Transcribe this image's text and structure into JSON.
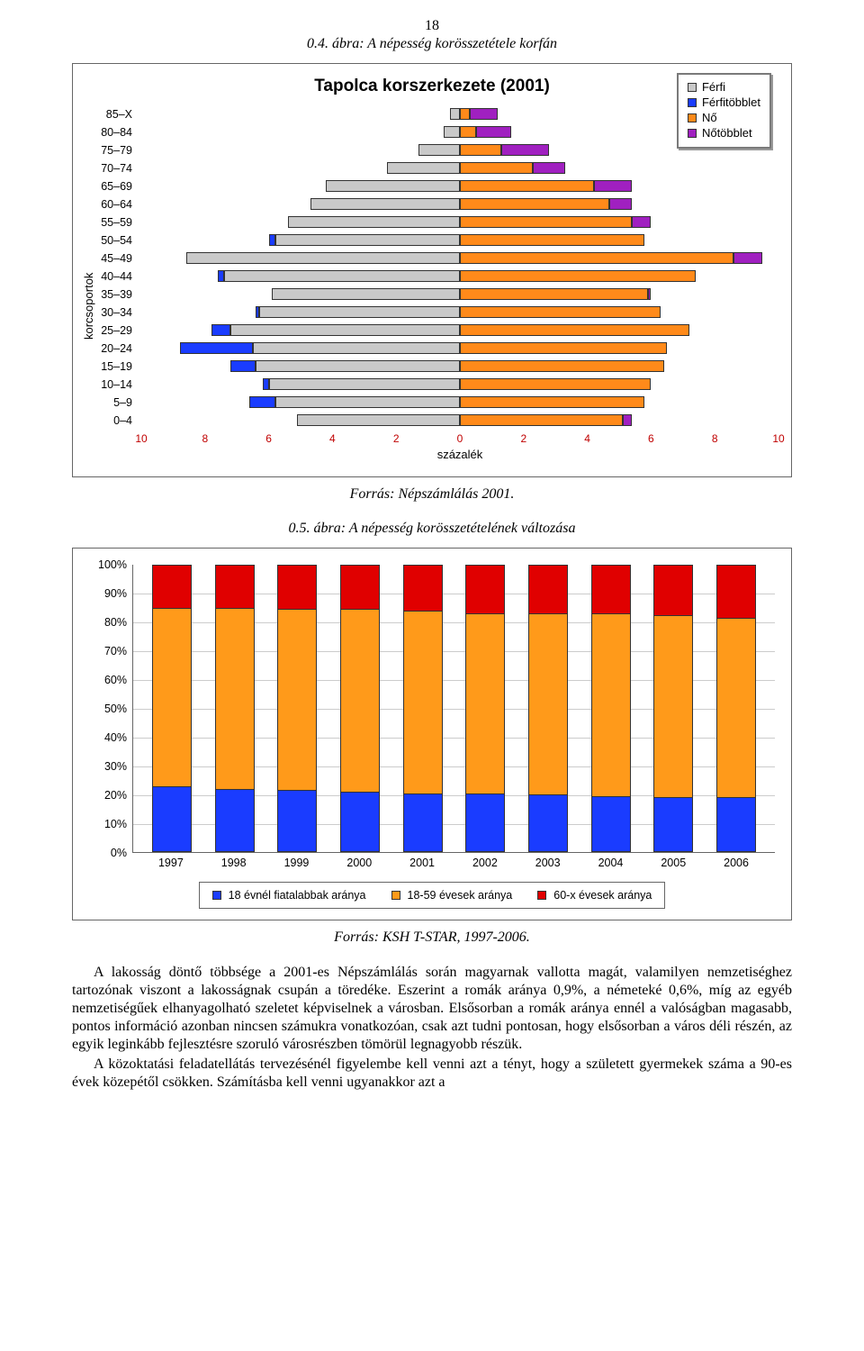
{
  "page_number": "18",
  "caption_pyramid": "0.4. ábra: A népesség korösszetétele korfán",
  "pyramid": {
    "title": "Tapolca korszerkezete (2001)",
    "ylabel": "korcsoportok",
    "xlabel": "százalék",
    "xlim": 10,
    "ticks": [
      10,
      8,
      6,
      4,
      2,
      0,
      2,
      4,
      6,
      8,
      10
    ],
    "tick_color": "#c00000",
    "legend": {
      "male": "Férfi",
      "male_surplus": "Férfitöbblet",
      "female": "Nő",
      "female_surplus": "Nőtöbblet"
    },
    "colors": {
      "male": "#c9c9c9",
      "male_surplus": "#1a3cff",
      "female": "#ff8a1a",
      "female_surplus": "#a020c0",
      "border": "#333333"
    },
    "groups": [
      {
        "label": "85–X",
        "male": 0.3,
        "female": 1.2,
        "m_sur": 0,
        "f_sur": 0.9
      },
      {
        "label": "80–84",
        "male": 0.5,
        "female": 1.6,
        "m_sur": 0,
        "f_sur": 1.1
      },
      {
        "label": "75–79",
        "male": 1.3,
        "female": 2.8,
        "m_sur": 0,
        "f_sur": 1.5
      },
      {
        "label": "70–74",
        "male": 2.3,
        "female": 3.3,
        "m_sur": 0,
        "f_sur": 1.0
      },
      {
        "label": "65–69",
        "male": 4.2,
        "female": 5.4,
        "m_sur": 0,
        "f_sur": 1.2
      },
      {
        "label": "60–64",
        "male": 4.7,
        "female": 5.4,
        "m_sur": 0,
        "f_sur": 0.7
      },
      {
        "label": "55–59",
        "male": 5.4,
        "female": 6.0,
        "m_sur": 0,
        "f_sur": 0.6
      },
      {
        "label": "50–54",
        "male": 6.0,
        "female": 5.8,
        "m_sur": 0.2,
        "f_sur": 0
      },
      {
        "label": "45–49",
        "male": 8.6,
        "female": 9.5,
        "m_sur": 0,
        "f_sur": 0.9
      },
      {
        "label": "40–44",
        "male": 7.6,
        "female": 7.4,
        "m_sur": 0.2,
        "f_sur": 0
      },
      {
        "label": "35–39",
        "male": 5.9,
        "female": 6.0,
        "m_sur": 0,
        "f_sur": 0.1
      },
      {
        "label": "30–34",
        "male": 6.4,
        "female": 6.3,
        "m_sur": 0.1,
        "f_sur": 0
      },
      {
        "label": "25–29",
        "male": 7.8,
        "female": 7.2,
        "m_sur": 0.6,
        "f_sur": 0
      },
      {
        "label": "20–24",
        "male": 8.8,
        "female": 6.5,
        "m_sur": 2.3,
        "f_sur": 0
      },
      {
        "label": "15–19",
        "male": 7.2,
        "female": 6.4,
        "m_sur": 0.8,
        "f_sur": 0
      },
      {
        "label": "10–14",
        "male": 6.2,
        "female": 6.0,
        "m_sur": 0.2,
        "f_sur": 0
      },
      {
        "label": "5–9",
        "male": 6.6,
        "female": 5.8,
        "m_sur": 0.8,
        "f_sur": 0
      },
      {
        "label": "0–4",
        "male": 5.1,
        "female": 5.4,
        "m_sur": 0,
        "f_sur": 0.3
      }
    ]
  },
  "source_pyramid": "Forrás: Népszámlálás 2001.",
  "caption_stacked": "0.5. ábra: A népesség korösszetételének változása",
  "stacked": {
    "ylabels": [
      "100%",
      "90%",
      "80%",
      "70%",
      "60%",
      "50%",
      "40%",
      "30%",
      "20%",
      "10%",
      "0%"
    ],
    "years": [
      "1997",
      "1998",
      "1999",
      "2000",
      "2001",
      "2002",
      "2003",
      "2004",
      "2005",
      "2006"
    ],
    "series": {
      "young": {
        "label": "18 évnél fiatalabbak aránya",
        "color": "#1a3cff"
      },
      "mid": {
        "label": "18-59 évesek aránya",
        "color": "#ff9a1a"
      },
      "old": {
        "label": "60-x évesek aránya",
        "color": "#e00000"
      }
    },
    "data": [
      {
        "young": 23,
        "mid": 62,
        "old": 15
      },
      {
        "young": 22,
        "mid": 63,
        "old": 15
      },
      {
        "young": 21.5,
        "mid": 63,
        "old": 15.5
      },
      {
        "young": 21,
        "mid": 63.5,
        "old": 15.5
      },
      {
        "young": 20.5,
        "mid": 63.5,
        "old": 16
      },
      {
        "young": 20.5,
        "mid": 62.5,
        "old": 17
      },
      {
        "young": 20,
        "mid": 63,
        "old": 17
      },
      {
        "young": 19.5,
        "mid": 63.5,
        "old": 17
      },
      {
        "young": 19,
        "mid": 63.5,
        "old": 17.5
      },
      {
        "young": 19,
        "mid": 62.5,
        "old": 18.5
      }
    ]
  },
  "source_stacked": "Forrás: KSH T-STAR, 1997-2006.",
  "paragraph1": "A lakosság döntő többsége a 2001-es Népszámlálás során magyarnak vallotta magát, valamilyen nemzetiséghez tartozónak viszont a lakosságnak csupán a töredéke. Eszerint a romák aránya 0,9%, a németeké 0,6%, míg az egyéb nemzetiségűek elhanyagolható szeletet képviselnek a városban. Elsősorban a romák aránya ennél a valóságban magasabb, pontos információ azonban nincsen számukra vonatkozóan, csak azt tudni pontosan, hogy elsősorban a város déli részén, az egyik leginkább fejlesztésre szoruló városrészben tömörül legnagyobb részük.",
  "paragraph2": "A közoktatási feladatellátás tervezésénél figyelembe kell venni azt a tényt, hogy a született gyermekek száma a 90-es évek közepétől csökken. Számításba kell venni ugyanakkor azt a"
}
